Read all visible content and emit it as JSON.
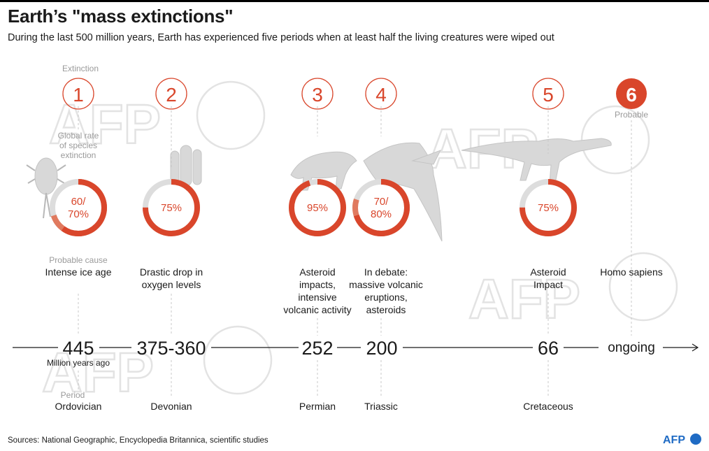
{
  "header": {
    "title": "Earth’s \"mass extinctions\"",
    "subtitle": "During the last 500 million years, Earth has experienced five periods when at least half the living creatures were wiped out"
  },
  "labels": {
    "extinction": "Extinction",
    "global_rate": [
      "Global rate",
      "of species",
      "extinction"
    ],
    "probable_cause": "Probable cause",
    "million_years_ago": "Million years ago",
    "period": "Period",
    "probable": "Probable"
  },
  "events": [
    {
      "number": "1",
      "rate": [
        "60/",
        "70%"
      ],
      "rate_min": 60,
      "rate_max": 70,
      "cause": [
        "Intense ice age"
      ],
      "date": "445",
      "period": "Ordovician"
    },
    {
      "number": "2",
      "rate": [
        "75%"
      ],
      "rate_min": 75,
      "rate_max": 75,
      "cause": [
        "Drastic drop in",
        "oxygen levels"
      ],
      "date": "375-360",
      "period": "Devonian"
    },
    {
      "number": "3",
      "rate": [
        "95%"
      ],
      "rate_min": 95,
      "rate_max": 95,
      "cause": [
        "Asteroid",
        "impacts,",
        "intensive",
        "volcanic activity"
      ],
      "date": "252",
      "period": "Permian"
    },
    {
      "number": "4",
      "rate": [
        "70/",
        "80%"
      ],
      "rate_min": 70,
      "rate_max": 80,
      "cause": [
        "In debate:",
        "massive volcanic",
        "eruptions,",
        "asteroids"
      ],
      "date": "200",
      "period": "Triassic"
    },
    {
      "number": "5",
      "rate": [
        "75%"
      ],
      "rate_min": 75,
      "rate_max": 75,
      "cause": [
        "Asteroid",
        "Impact"
      ],
      "date": "66",
      "period": "Cretaceous"
    },
    {
      "number": "6",
      "cause": [
        "Homo sapiens"
      ],
      "date": "ongoing"
    }
  ],
  "watermark": "AFP",
  "footer": {
    "sources": "Sources: National Geographic, Encyclopedia Britannica, scientific studies",
    "logo": "AFP"
  },
  "colors": {
    "accent": "#d9462b",
    "accent_light": "#e07a5f",
    "ring_track": "#dddddd",
    "text": "#1a1a1a",
    "muted": "#9a9a9a",
    "silhouette": "#d6d6d6",
    "logo_blue": "#1f6bc4"
  },
  "icons": {
    "fossils": [
      "trilobite",
      "crinoid",
      "gorgonopsid",
      "pterosaur",
      "dinosaur"
    ]
  }
}
